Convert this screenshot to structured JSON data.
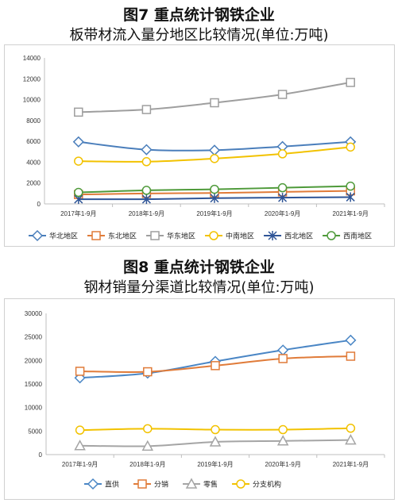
{
  "chart_data": [
    {
      "type": "line",
      "title": "图7 重点统计钢铁企业",
      "subtitle": "板带材流入量分地区比较情况(单位:万吨)",
      "categories": [
        "2017年1-9月",
        "2018年1-9月",
        "2019年1-9月",
        "2020年1-9月",
        "2021年1-9月"
      ],
      "ylim": [
        0,
        14000
      ],
      "yticks": [
        0,
        2000,
        4000,
        6000,
        8000,
        10000,
        12000,
        14000
      ],
      "grid": false,
      "legend": "bottom",
      "series": [
        {
          "name": "华北地区",
          "color": "#4a7ebb",
          "marker": "diamond",
          "values": [
            5950,
            5200,
            5150,
            5500,
            5950
          ]
        },
        {
          "name": "东北地区",
          "color": "#e07b39",
          "marker": "square",
          "values": [
            900,
            1000,
            1050,
            1150,
            1250
          ]
        },
        {
          "name": "华东地区",
          "color": "#9e9e9e",
          "marker": "square",
          "values": [
            8800,
            9050,
            9700,
            10500,
            11650
          ]
        },
        {
          "name": "中南地区",
          "color": "#f2c200",
          "marker": "circle",
          "values": [
            4100,
            4050,
            4350,
            4800,
            5450
          ]
        },
        {
          "name": "西北地区",
          "color": "#2f5597",
          "marker": "asterisk",
          "values": [
            450,
            450,
            550,
            600,
            650
          ]
        },
        {
          "name": "西南地区",
          "color": "#4e9a3a",
          "marker": "circle",
          "values": [
            1100,
            1300,
            1400,
            1550,
            1700
          ]
        }
      ]
    },
    {
      "type": "line",
      "title": "图8 重点统计钢铁企业",
      "subtitle": "钢材销量分渠道比较情况(单位:万吨)",
      "categories": [
        "2017年1-9月",
        "2018年1-9月",
        "2019年1-9月",
        "2020年1-9月",
        "2021年1-9月"
      ],
      "ylim": [
        0,
        30000
      ],
      "yticks": [
        0,
        5000,
        10000,
        15000,
        20000,
        25000,
        30000
      ],
      "grid": false,
      "legend": "bottom",
      "series": [
        {
          "name": "直供",
          "color": "#4a86c5",
          "marker": "diamond",
          "values": [
            16300,
            17300,
            19800,
            22200,
            24300
          ]
        },
        {
          "name": "分销",
          "color": "#e07b39",
          "marker": "square",
          "values": [
            17700,
            17600,
            18900,
            20400,
            20900
          ]
        },
        {
          "name": "零售",
          "color": "#a5a5a5",
          "marker": "triangle",
          "values": [
            1900,
            1800,
            2700,
            2900,
            3100
          ]
        },
        {
          "name": "分支机构",
          "color": "#f2c200",
          "marker": "circle",
          "values": [
            5200,
            5500,
            5300,
            5300,
            5600
          ]
        }
      ]
    }
  ]
}
